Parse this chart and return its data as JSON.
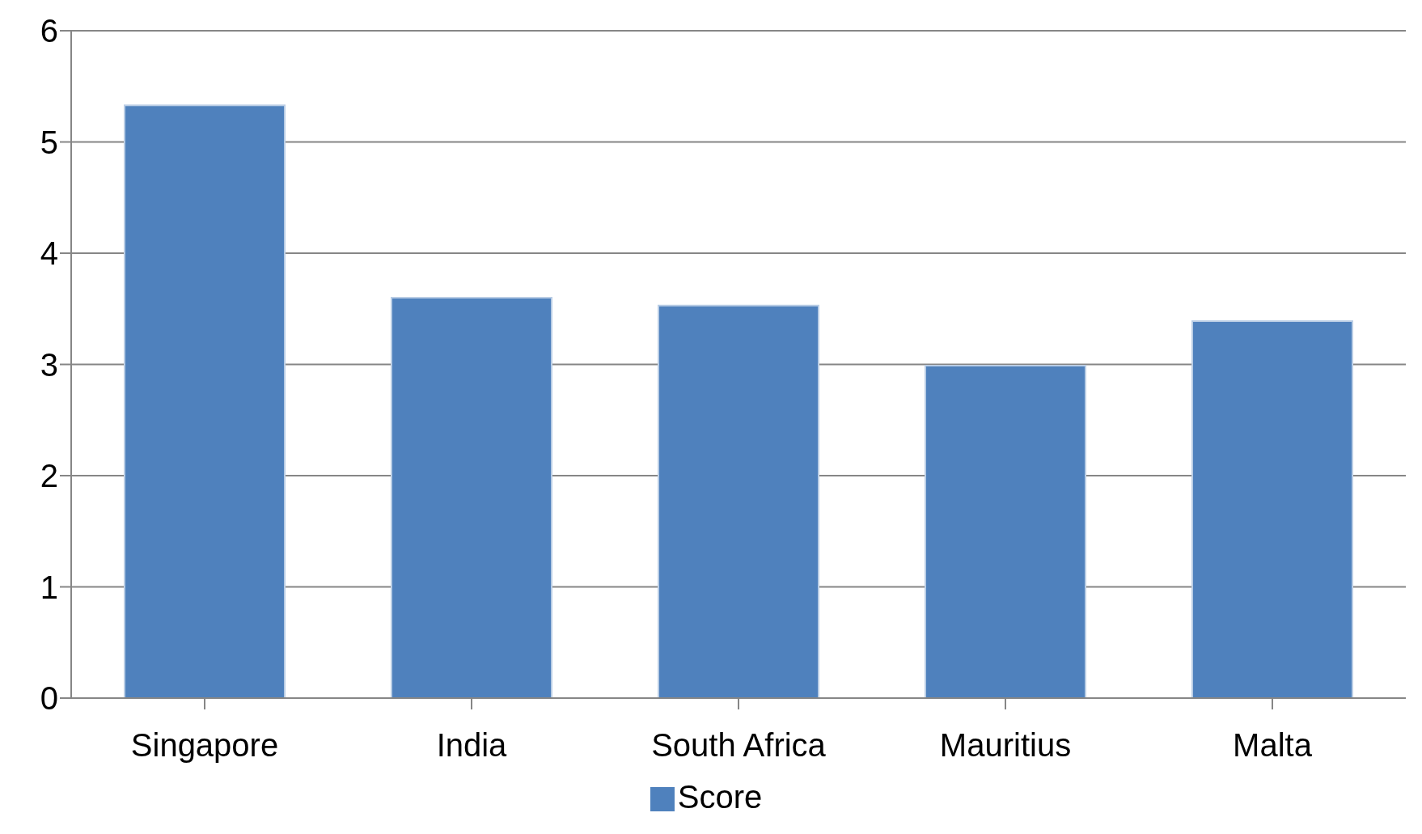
{
  "chart_data": {
    "type": "bar",
    "categories": [
      "Singapore",
      "India",
      "South Africa",
      "Mauritius",
      "Malta"
    ],
    "series": [
      {
        "name": "Score",
        "color": "#4f81bd",
        "values": [
          5.33,
          3.6,
          3.53,
          2.99,
          3.39
        ]
      }
    ],
    "ylim": [
      0,
      6
    ],
    "yticks": [
      0,
      1,
      2,
      3,
      4,
      5,
      6
    ],
    "grid": "y",
    "legend": "bottom"
  }
}
